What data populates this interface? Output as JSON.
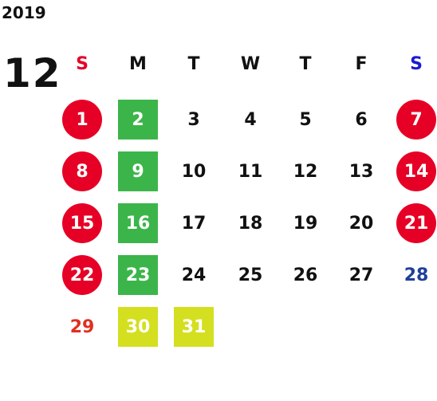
{
  "year": "2019",
  "month": "12",
  "weekdays": [
    "S",
    "M",
    "T",
    "W",
    "T",
    "F",
    "S"
  ],
  "weeks": [
    [
      "1",
      "2",
      "3",
      "4",
      "5",
      "6",
      "7"
    ],
    [
      "8",
      "9",
      "10",
      "11",
      "12",
      "13",
      "14"
    ],
    [
      "15",
      "16",
      "17",
      "18",
      "19",
      "20",
      "21"
    ],
    [
      "22",
      "23",
      "24",
      "25",
      "26",
      "27",
      "28"
    ],
    [
      "29",
      "30",
      "31"
    ]
  ]
}
